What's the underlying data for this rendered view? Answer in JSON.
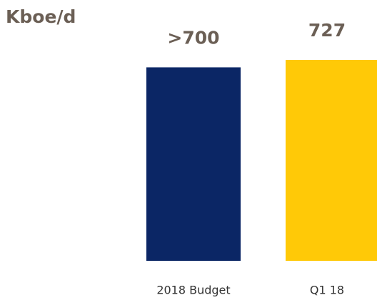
{
  "chart_data": {
    "type": "bar",
    "title": "Kboe/d",
    "categories": [
      "2018 Budget",
      "Q1 18"
    ],
    "values": [
      700,
      727
    ],
    "value_labels": [
      ">700",
      "727"
    ],
    "colors": [
      "#0b2665",
      "#ffc907"
    ]
  }
}
